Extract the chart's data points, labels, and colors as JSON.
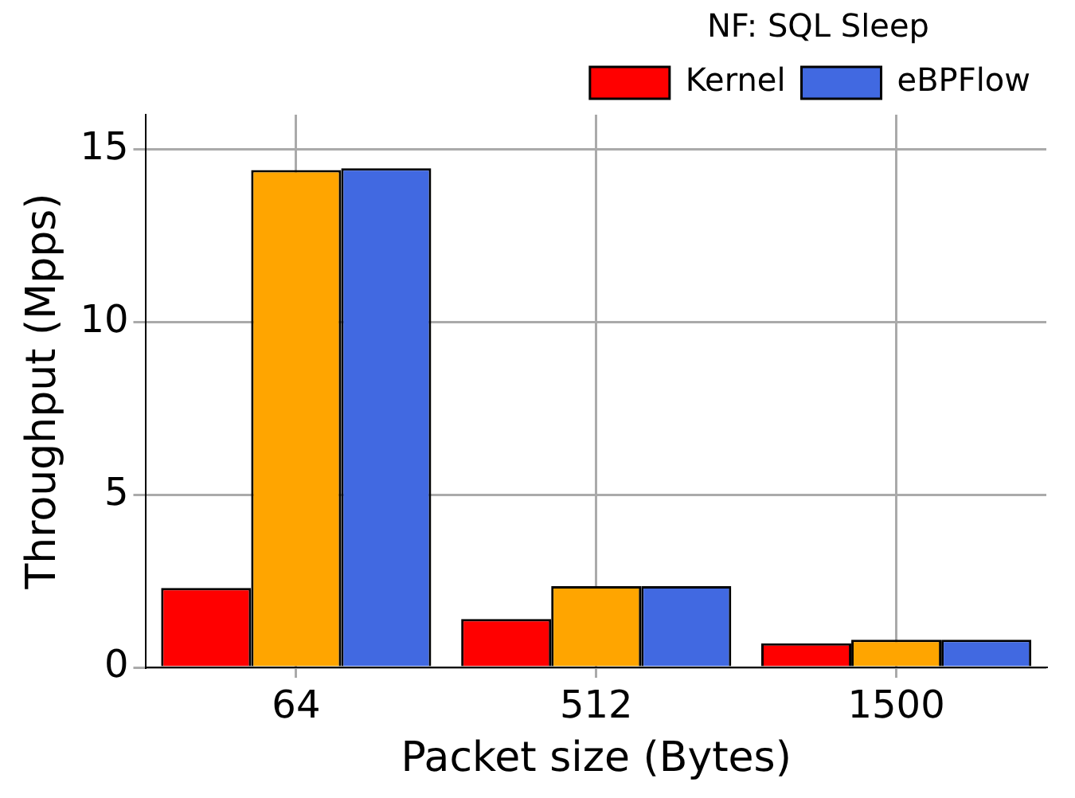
{
  "chart_data": {
    "type": "bar",
    "xlabel": "Packet size (Bytes)",
    "ylabel": "Throughput (Mpps)",
    "legend_title": "NF: SQL Sleep",
    "categories": [
      "64",
      "512",
      "1500"
    ],
    "series": [
      {
        "name": "Kernel",
        "color": "#ff0000",
        "values": [
          2.3,
          1.4,
          0.7
        ]
      },
      {
        "color": "#ffa500",
        "values": [
          14.4,
          2.35,
          0.8
        ]
      },
      {
        "name": "eBPFlow",
        "color": "#4169e1",
        "values": [
          14.45,
          2.35,
          0.8
        ]
      }
    ],
    "ylim": [
      0,
      16
    ],
    "yticks": [
      0,
      5,
      10,
      15
    ],
    "grid": true,
    "legend": "top right"
  }
}
